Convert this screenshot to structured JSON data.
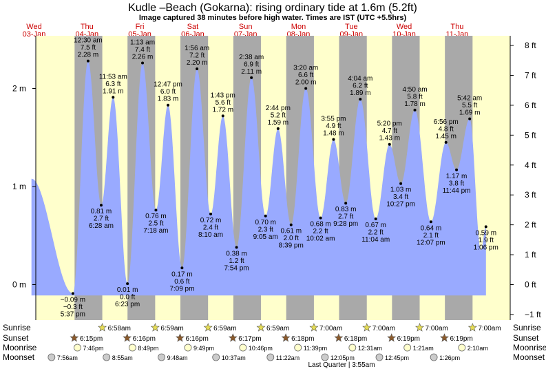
{
  "title": "Kudle –Beach (Gokarna): rising  ordinary tide at 1.6m (5.2ft)",
  "subtitle": "Image captured 38 minutes before high water. Times are IST (UTC +5.5hrs)",
  "colors": {
    "day_bg": "#ffffcc",
    "night_bg": "#a9a9a9",
    "tide_fill": "#99aaff",
    "day_label": "#cc0000",
    "sun_star": "#e6dd55",
    "moon_star": "#8b5a2b"
  },
  "days": [
    {
      "name": "Wed",
      "date": "03-Jan"
    },
    {
      "name": "Thu",
      "date": "04-Jan"
    },
    {
      "name": "Fri",
      "date": "05-Jan"
    },
    {
      "name": "Sat",
      "date": "06-Jan"
    },
    {
      "name": "Sun",
      "date": "07-Jan"
    },
    {
      "name": "Mon",
      "date": "08-Jan"
    },
    {
      "name": "Tue",
      "date": "09-Jan"
    },
    {
      "name": "Wed",
      "date": "10-Jan"
    },
    {
      "name": "Thu",
      "date": "11-Jan"
    }
  ],
  "chart_data": {
    "type": "area",
    "x_unit": "days from 03-Jan 00:00 IST",
    "y_left": {
      "unit": "m",
      "ticks": [
        {
          "value": 0,
          "label": "0 m"
        },
        {
          "value": 1,
          "label": "1 m"
        },
        {
          "value": 2,
          "label": "2 m"
        }
      ],
      "range": [
        -0.19,
        2.49
      ]
    },
    "y_right": {
      "unit": "ft",
      "ticks": [
        {
          "value": -1,
          "label": "−1 ft"
        },
        {
          "value": 0,
          "label": "0 ft"
        },
        {
          "value": 1,
          "label": "1 ft"
        },
        {
          "value": 2,
          "label": "2 ft"
        },
        {
          "value": 3,
          "label": "3 ft"
        },
        {
          "value": 4,
          "label": "4 ft"
        },
        {
          "value": 5,
          "label": "5 ft"
        },
        {
          "value": 6,
          "label": "6 ft"
        },
        {
          "value": 7,
          "label": "7 ft"
        },
        {
          "value": 8,
          "label": "8 ft"
        }
      ]
    },
    "x_range": [
      0,
      8.5
    ],
    "nights": [
      {
        "start": 0.766,
        "end": 1.29
      },
      {
        "start": 1.767,
        "end": 2.29
      },
      {
        "start": 2.767,
        "end": 3.29
      },
      {
        "start": 3.768,
        "end": 4.29
      },
      {
        "start": 4.768,
        "end": 5.292
      },
      {
        "start": 5.768,
        "end": 6.292
      },
      {
        "start": 6.769,
        "end": 7.292
      },
      {
        "start": 7.769,
        "end": 8.292
      }
    ],
    "tide_start": {
      "t": -0.05,
      "h": 1.08
    },
    "tide_end": {
      "t": 8.45,
      "h": 0.35
    },
    "extrema": [
      {
        "t": 0.734,
        "h": -0.09,
        "lines": [
          "−0.09 m",
          "−0.3 ft",
          "5:37 pm"
        ],
        "pos": "below"
      },
      {
        "t": 1.021,
        "h": 2.28,
        "lines": [
          "12:30 am",
          "7.5 ft",
          "2.28 m"
        ],
        "pos": "above"
      },
      {
        "t": 1.269,
        "h": 0.81,
        "lines": [
          "0.81 m",
          "2.7 ft",
          "6:28 am"
        ],
        "pos": "below"
      },
      {
        "t": 1.495,
        "h": 1.91,
        "lines": [
          "11:53 am",
          "6.3 ft",
          "1.91 m"
        ],
        "pos": "above"
      },
      {
        "t": 1.766,
        "h": 0.01,
        "lines": [
          "0.01 m",
          "0.0 ft",
          "6:23 pm"
        ],
        "pos": "below"
      },
      {
        "t": 2.051,
        "h": 2.26,
        "lines": [
          "1:13 am",
          "7.4 ft",
          "2.26 m"
        ],
        "pos": "above"
      },
      {
        "t": 2.304,
        "h": 0.76,
        "lines": [
          "0.76 m",
          "2.5 ft",
          "7:18 am"
        ],
        "pos": "below"
      },
      {
        "t": 2.533,
        "h": 1.83,
        "lines": [
          "12:47 pm",
          "6.0 ft",
          "1.83 m"
        ],
        "pos": "above"
      },
      {
        "t": 2.798,
        "h": 0.17,
        "lines": [
          "0.17 m",
          "0.6 ft",
          "7:09 pm"
        ],
        "pos": "below"
      },
      {
        "t": 3.081,
        "h": 2.2,
        "lines": [
          "1:56 am",
          "7.2 ft",
          "2.20 m"
        ],
        "pos": "above"
      },
      {
        "t": 3.34,
        "h": 0.72,
        "lines": [
          "0.72 m",
          "2.4 ft",
          "8:10 am"
        ],
        "pos": "below"
      },
      {
        "t": 3.571,
        "h": 1.72,
        "lines": [
          "1:43 pm",
          "5.6 ft",
          "1.72 m"
        ],
        "pos": "above"
      },
      {
        "t": 3.829,
        "h": 0.38,
        "lines": [
          "0.38 m",
          "1.2 ft",
          "7:54 pm"
        ],
        "pos": "below"
      },
      {
        "t": 4.11,
        "h": 2.11,
        "lines": [
          "2:38 am",
          "6.9 ft",
          "2.11 m"
        ],
        "pos": "above"
      },
      {
        "t": 4.378,
        "h": 0.7,
        "lines": [
          "0.70 m",
          "2.3 ft",
          "9:05 am"
        ],
        "pos": "below"
      },
      {
        "t": 4.614,
        "h": 1.59,
        "lines": [
          "2:44 pm",
          "5.2 ft",
          "1.59 m"
        ],
        "pos": "above"
      },
      {
        "t": 4.86,
        "h": 0.61,
        "lines": [
          "0.61 m",
          "2.0 ft",
          "8:39 pm"
        ],
        "pos": "below"
      },
      {
        "t": 5.139,
        "h": 2.0,
        "lines": [
          "3:20 am",
          "6.6 ft",
          "2.00 m"
        ],
        "pos": "above"
      },
      {
        "t": 5.418,
        "h": 0.68,
        "lines": [
          "0.68 m",
          "2.2 ft",
          "10:02 am"
        ],
        "pos": "below"
      },
      {
        "t": 5.663,
        "h": 1.48,
        "lines": [
          "3:55 pm",
          "4.9 ft",
          "1.48 m"
        ],
        "pos": "above"
      },
      {
        "t": 5.894,
        "h": 0.83,
        "lines": [
          "0.83 m",
          "2.7 ft",
          "9:28 pm"
        ],
        "pos": "below"
      },
      {
        "t": 6.169,
        "h": 1.89,
        "lines": [
          "4:04 am",
          "6.2 ft",
          "1.89 m"
        ],
        "pos": "above"
      },
      {
        "t": 6.461,
        "h": 0.67,
        "lines": [
          "0.67 m",
          "2.2 ft",
          "11:04 am"
        ],
        "pos": "below"
      },
      {
        "t": 6.722,
        "h": 1.43,
        "lines": [
          "5:20 pm",
          "4.7 ft",
          "1.43 m"
        ],
        "pos": "above"
      },
      {
        "t": 6.935,
        "h": 1.03,
        "lines": [
          "1.03 m",
          "3.4 ft",
          "10:27 pm"
        ],
        "pos": "below"
      },
      {
        "t": 7.201,
        "h": 1.78,
        "lines": [
          "4:50 am",
          "5.8 ft",
          "1.78 m"
        ],
        "pos": "above"
      },
      {
        "t": 7.505,
        "h": 0.64,
        "lines": [
          "0.64 m",
          "2.1 ft",
          "12:07 pm"
        ],
        "pos": "below"
      },
      {
        "t": 7.789,
        "h": 1.45,
        "lines": [
          "6:56 pm",
          "4.8 ft",
          "1.45 m"
        ],
        "pos": "above"
      },
      {
        "t": 7.989,
        "h": 1.17,
        "lines": [
          "1.17 m",
          "3.8 ft",
          "11:44 pm"
        ],
        "pos": "below"
      },
      {
        "t": 8.238,
        "h": 1.69,
        "lines": [
          "5:42 am",
          "5.5 ft",
          "1.69 m"
        ],
        "pos": "above"
      },
      {
        "t": 8.545,
        "h": 0.59,
        "lines": [
          "0.59 m",
          "1.9 ft",
          "1:06 pm"
        ],
        "pos": "below"
      }
    ]
  },
  "rows": {
    "sunrise": {
      "label": "Sunrise",
      "events": [
        {
          "t": 1.29,
          "time": "6:58am"
        },
        {
          "t": 2.29,
          "time": "6:59am"
        },
        {
          "t": 3.29,
          "time": "6:59am"
        },
        {
          "t": 4.29,
          "time": "6:59am"
        },
        {
          "t": 5.292,
          "time": "7:00am"
        },
        {
          "t": 6.292,
          "time": "7:00am"
        },
        {
          "t": 7.292,
          "time": "7:00am"
        },
        {
          "t": 8.292,
          "time": "7:00am"
        }
      ]
    },
    "sunset": {
      "label": "Sunset",
      "events": [
        {
          "t": 0.76,
          "time": "6:15pm"
        },
        {
          "t": 1.76,
          "time": "6:16pm"
        },
        {
          "t": 2.76,
          "time": "6:16pm"
        },
        {
          "t": 3.76,
          "time": "6:17pm"
        },
        {
          "t": 4.76,
          "time": "6:18pm"
        },
        {
          "t": 5.76,
          "time": "6:18pm"
        },
        {
          "t": 6.76,
          "time": "6:19pm"
        },
        {
          "t": 7.76,
          "time": "6:19pm"
        }
      ]
    },
    "moonrise": {
      "label": "Moonrise",
      "events": [
        {
          "t": 0.82,
          "time": "7:46pm"
        },
        {
          "t": 1.86,
          "time": "8:49pm"
        },
        {
          "t": 2.91,
          "time": "9:49pm"
        },
        {
          "t": 3.95,
          "time": "10:46pm"
        },
        {
          "t": 4.99,
          "time": "11:39pm"
        },
        {
          "t": 6.02,
          "time": "12:31am"
        },
        {
          "t": 7.06,
          "time": "1:21am"
        },
        {
          "t": 8.09,
          "time": "2:10am"
        }
      ]
    },
    "moonset": {
      "label": "Moonset",
      "events": [
        {
          "t": 0.33,
          "time": "7:56am"
        },
        {
          "t": 1.37,
          "time": "8:55am"
        },
        {
          "t": 2.41,
          "time": "9:48am"
        },
        {
          "t": 3.44,
          "time": "10:37am"
        },
        {
          "t": 4.47,
          "time": "11:22am"
        },
        {
          "t": 5.5,
          "time": "12:05pm"
        },
        {
          "t": 6.53,
          "time": "12:45pm"
        },
        {
          "t": 7.56,
          "time": "1:26pm"
        }
      ]
    }
  },
  "footer": "Last Quarter | 3:55am"
}
